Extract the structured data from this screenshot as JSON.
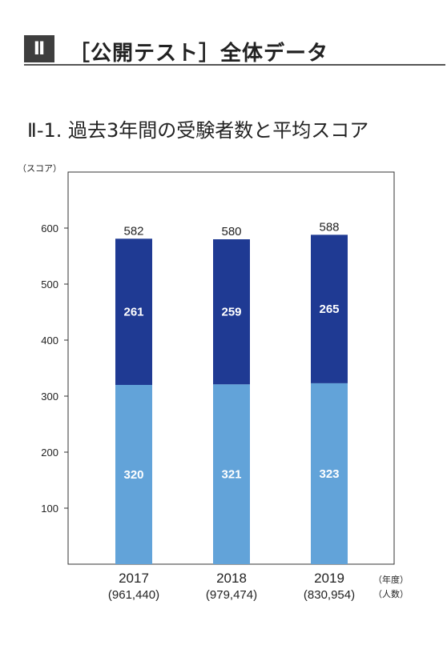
{
  "section": {
    "number": "Ⅱ",
    "title": "［公開テスト］全体データ"
  },
  "chart_title": "Ⅱ-1. 過去3年間の受験者数と平均スコア",
  "colors": {
    "lower_segment": "#62a3d9",
    "upper_segment": "#1f3a93",
    "frame": "#333333"
  },
  "chart_data": {
    "type": "bar",
    "stacked": true,
    "title": "Ⅱ-1. 過去3年間の受験者数と平均スコア",
    "ylabel": "（スコア）",
    "xlabel_unit": "（年度）",
    "count_unit": "（人数）",
    "ylim": [
      0,
      700
    ],
    "yticks": [
      100,
      200,
      300,
      400,
      500,
      600
    ],
    "grid": false,
    "categories": [
      "2017",
      "2018",
      "2019"
    ],
    "participants": [
      "(961,440)",
      "(979,474)",
      "(830,954)"
    ],
    "series": [
      {
        "values": [
          320,
          321,
          323
        ]
      },
      {
        "values": [
          261,
          259,
          265
        ]
      }
    ],
    "totals": [
      582,
      580,
      588
    ]
  }
}
